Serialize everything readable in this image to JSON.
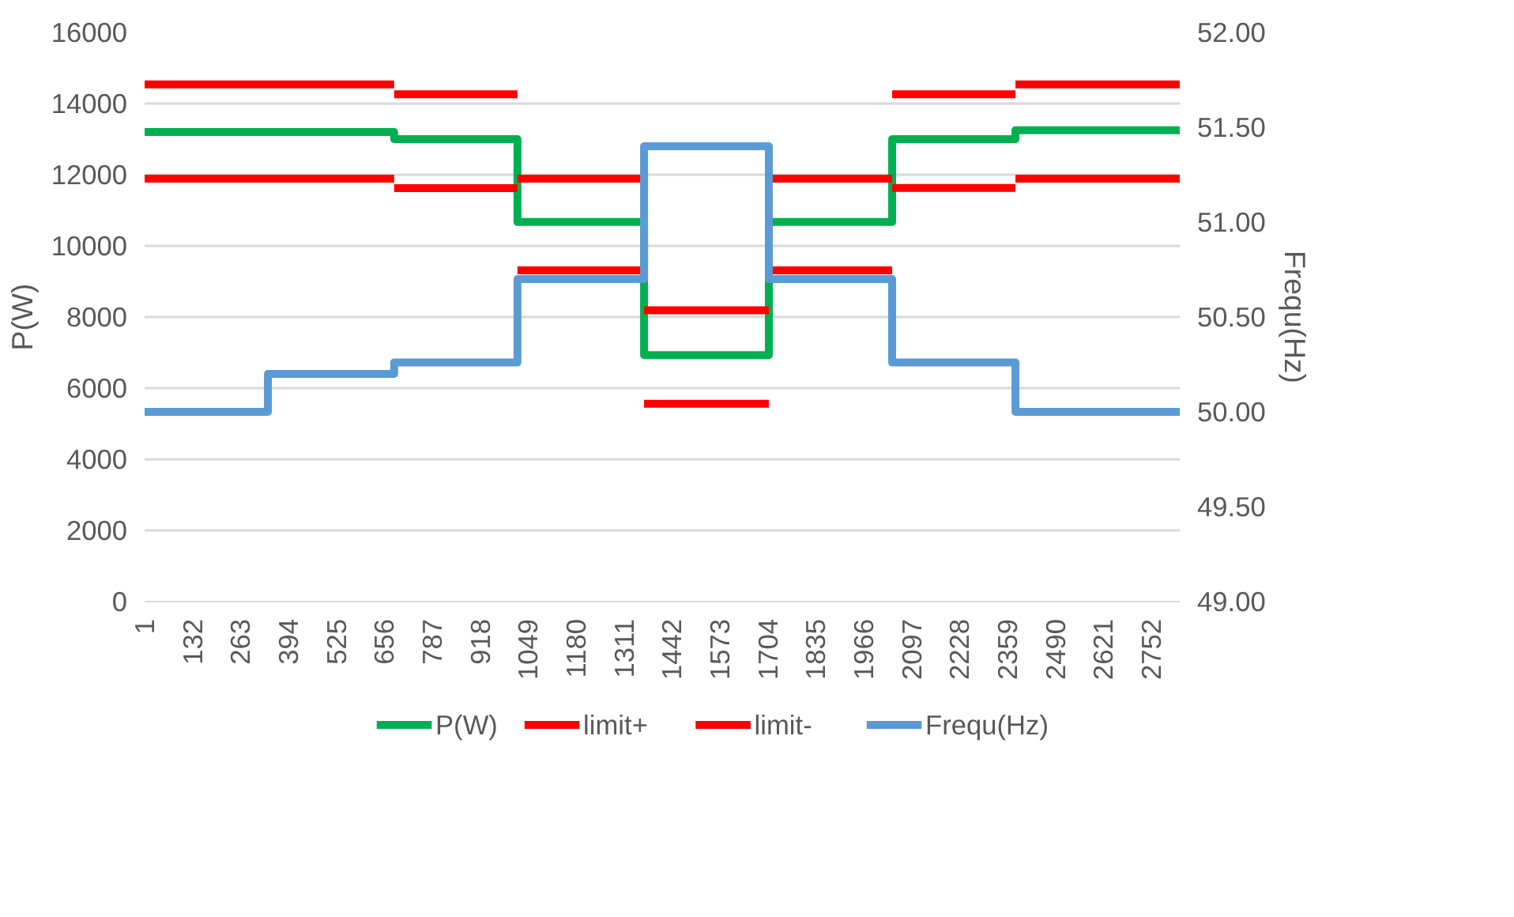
{
  "chart_data": {
    "type": "line",
    "ylabel": "P(W)",
    "y2label": "Frequ(Hz)",
    "xlim": [
      1,
      2830
    ],
    "xticks": [
      1,
      132,
      263,
      394,
      525,
      656,
      787,
      918,
      1049,
      1180,
      1311,
      1442,
      1573,
      1704,
      1835,
      1966,
      2097,
      2228,
      2359,
      2490,
      2621,
      2752
    ],
    "ylim": [
      0,
      16000
    ],
    "yticks": [
      0,
      2000,
      4000,
      6000,
      8000,
      10000,
      12000,
      14000,
      16000
    ],
    "y2lim": [
      49,
      52
    ],
    "y2ticks": [
      {
        "value": 49,
        "label": "49.00"
      },
      {
        "value": 49.5,
        "label": "49.50"
      },
      {
        "value": 50,
        "label": "50.00"
      },
      {
        "value": 50.5,
        "label": "50.50"
      },
      {
        "value": 51,
        "label": "51.00"
      },
      {
        "value": 51.5,
        "label": "51.50"
      },
      {
        "value": 52,
        "label": "52.00"
      }
    ],
    "grid": "y",
    "legend": "bottom",
    "line_style": "solid",
    "marker": "none",
    "series": [
      {
        "name": "P(W)",
        "color": "#00b050",
        "x": [
          1,
          683,
          683,
          1020,
          1020,
          1366,
          1366,
          1707,
          1707,
          2044,
          2044,
          2381,
          2381,
          2830
        ],
        "values": [
          13200,
          13200,
          13000,
          13000,
          10670,
          10670,
          6930,
          6930,
          10670,
          10670,
          13000,
          13000,
          13250,
          13250
        ]
      },
      {
        "name": "limit+",
        "color": "#ff0000",
        "x": [
          1,
          683,
          null,
          683,
          1020,
          null,
          1020,
          1366,
          null,
          1366,
          1707,
          null,
          1707,
          2044,
          null,
          2044,
          2381,
          null,
          2381,
          2830
        ],
        "values": [
          14540,
          14540,
          null,
          14260,
          14260,
          null,
          11890,
          11890,
          null,
          8190,
          8190,
          null,
          11890,
          11890,
          null,
          14260,
          14260,
          null,
          14540,
          14540
        ]
      },
      {
        "name": "limit-",
        "color": "#ff0000",
        "x": [
          1,
          683,
          null,
          683,
          1020,
          null,
          1020,
          1366,
          null,
          1366,
          1707,
          null,
          1707,
          2044,
          null,
          2044,
          2381,
          null,
          2381,
          2830
        ],
        "values": [
          11890,
          11890,
          null,
          11620,
          11620,
          null,
          9310,
          9310,
          null,
          5560,
          5560,
          null,
          9310,
          9310,
          null,
          11630,
          11630,
          null,
          11890,
          11890
        ]
      },
      {
        "name": "Frequ(Hz)",
        "color": "#5b9bd5",
        "axis": "y2",
        "x": [
          1,
          338,
          338,
          683,
          683,
          1020,
          1020,
          1366,
          1366,
          1707,
          1707,
          2044,
          2044,
          2381,
          2381,
          2830
        ],
        "values": [
          50.0,
          50.0,
          50.2,
          50.2,
          50.26,
          50.26,
          50.7,
          50.7,
          51.4,
          51.4,
          50.7,
          50.7,
          50.26,
          50.26,
          50.0,
          50.0
        ]
      }
    ]
  }
}
